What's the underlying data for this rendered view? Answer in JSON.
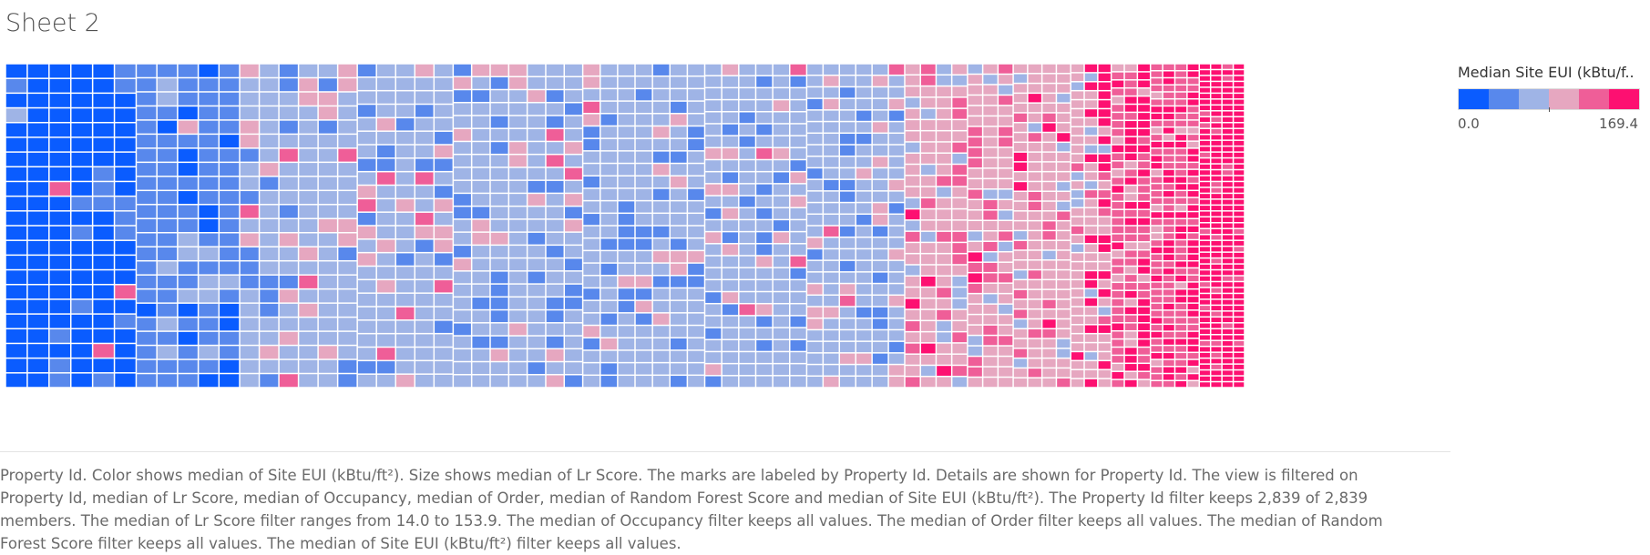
{
  "sheet": {
    "title": "Sheet 2"
  },
  "legend": {
    "title": "Median Site EUI (kBtu/f..",
    "min_label": "0.0",
    "max_label": "169.4",
    "colors": [
      "#0a5cff",
      "#5888ec",
      "#9fb4e6",
      "#e6a7c0",
      "#ef5e98",
      "#fd1071"
    ]
  },
  "caption": {
    "text": "Property Id.  Color shows median of Site EUI (kBtu/ft²).  Size shows median of Lr Score.  The marks are labeled by Property Id.  Details are shown for Property Id. The view is filtered on Property Id, median of Lr Score, median of Occupancy, median of Order, median of Random Forest Score and median of Site EUI (kBtu/ft²). The Property Id filter keeps 2,839 of 2,839 members. The median of Lr Score filter ranges from 14.0 to 153.9. The median of Occupancy filter keeps all values. The median of Order filter keeps all values. The median of Random Forest Score filter keeps all values. The median of Site EUI (kBtu/ft²) filter keeps all values."
  },
  "chart_data": {
    "type": "treemap",
    "color_measure": "Median Site EUI (kBtu/ft²)",
    "size_measure": "Median Lr Score",
    "label_field": "Property Id",
    "color_range": [
      0.0,
      169.4
    ],
    "size_filter_range": [
      14.0,
      153.9
    ],
    "member_count": 2839,
    "color_bands": [
      {
        "name": "band 1",
        "range": [
          0.0,
          28.2
        ]
      },
      {
        "name": "band 2",
        "range": [
          28.2,
          56.5
        ]
      },
      {
        "name": "band 3",
        "range": [
          56.5,
          84.7
        ]
      },
      {
        "name": "band 4",
        "range": [
          84.7,
          112.9
        ]
      },
      {
        "name": "band 5",
        "range": [
          112.9,
          141.2
        ]
      },
      {
        "name": "band 6",
        "range": [
          141.2,
          169.4
        ]
      }
    ],
    "column_groups": [
      {
        "columns": 1,
        "rows": 22,
        "dominant_band": 1
      },
      {
        "columns": 5,
        "rows": 22,
        "dominant_band": 1
      },
      {
        "columns": 5,
        "rows": 23,
        "dominant_band": 2
      },
      {
        "columns": 6,
        "rows": 23,
        "dominant_band": 3
      },
      {
        "columns": 5,
        "rows": 24,
        "dominant_band": 3
      },
      {
        "columns": 7,
        "rows": 25,
        "dominant_band": 3
      },
      {
        "columns": 7,
        "rows": 26,
        "dominant_band": 3
      },
      {
        "columns": 6,
        "rows": 27,
        "dominant_band": 3
      },
      {
        "columns": 6,
        "rows": 28,
        "dominant_band": 3
      },
      {
        "columns": 4,
        "rows": 29,
        "dominant_band": 4
      },
      {
        "columns": 3,
        "rows": 31,
        "dominant_band": 4
      },
      {
        "columns": 4,
        "rows": 33,
        "dominant_band": 4
      },
      {
        "columns": 3,
        "rows": 36,
        "dominant_band": 4
      },
      {
        "columns": 3,
        "rows": 40,
        "dominant_band": 5
      },
      {
        "columns": 4,
        "rows": 46,
        "dominant_band": 5
      },
      {
        "columns": 4,
        "rows": 55,
        "dominant_band": 6
      }
    ]
  }
}
